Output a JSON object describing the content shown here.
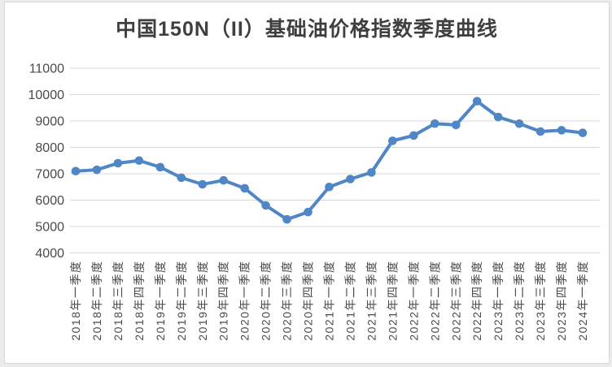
{
  "window": {
    "background_color": "#ececec",
    "card_color": "#ffffff",
    "card_border_color": "#d6d6d6"
  },
  "chart_data": {
    "type": "line",
    "title": "中国150N（II）基础油价格指数季度曲线",
    "categories": [
      "2018年一季度",
      "2018年二季度",
      "2018年三季度",
      "2018年四季度",
      "2019年一季度",
      "2019年二季度",
      "2019年三季度",
      "2019年四季度",
      "2020年一季度",
      "2020年二季度",
      "2020年三季度",
      "2020年四季度",
      "2021年一季度",
      "2021年二季度",
      "2021年三季度",
      "2021年四季度",
      "2022年一季度",
      "2022年二季度",
      "2022年三季度",
      "2022年四季度",
      "2023年一季度",
      "2023年二季度",
      "2023年三季度",
      "2023年四季度",
      "2024年一季度"
    ],
    "values": [
      7100,
      7150,
      7400,
      7500,
      7250,
      6850,
      6600,
      6750,
      6450,
      5800,
      5270,
      5550,
      6500,
      6800,
      7050,
      8250,
      8450,
      8900,
      8850,
      9750,
      9150,
      8900,
      8600,
      8650,
      8550
    ],
    "ylim": [
      4000,
      11000
    ],
    "ytick_step": 1000,
    "yticks": [
      11000,
      10000,
      9000,
      8000,
      7000,
      6000,
      5000,
      4000
    ],
    "xlabel": "",
    "ylabel": "",
    "x_label_rotation": -90,
    "grid": "horizontal-only",
    "legend": "none",
    "line_color": "#4e86c6",
    "marker_shape": "circle",
    "gridline_color": "#d9d9d9",
    "axis_label_color": "#4a4a4a",
    "title_color": "#3f3f3f"
  }
}
